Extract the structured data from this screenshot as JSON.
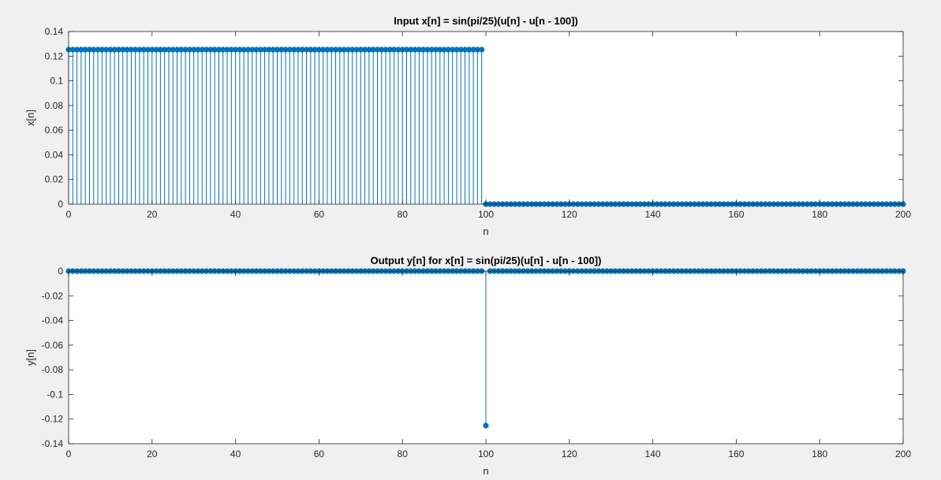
{
  "chart_data": [
    {
      "type": "stem",
      "title": "Input x[n] = sin(pi/25)(u[n] - u[n - 100])",
      "xlabel": "n",
      "ylabel": "x[n]",
      "xlim": [
        0,
        200
      ],
      "ylim": [
        0,
        0.14
      ],
      "xticks": [
        0,
        20,
        40,
        60,
        80,
        100,
        120,
        140,
        160,
        180,
        200
      ],
      "xtick_labels": [
        "0",
        "20",
        "40",
        "60",
        "80",
        "100",
        "120",
        "140",
        "160",
        "180",
        "200"
      ],
      "yticks": [
        0,
        0.02,
        0.04,
        0.06,
        0.08,
        0.1,
        0.12,
        0.14
      ],
      "ytick_labels": [
        "0",
        "0.02",
        "0.04",
        "0.06",
        "0.08",
        "0.1",
        "0.12",
        "0.14"
      ],
      "grid": false,
      "series": [
        {
          "color": "#0072bd",
          "segments": [
            {
              "x_start": 0,
              "x_end": 99,
              "step": 1,
              "y": 0.1253
            },
            {
              "x_start": 100,
              "x_end": 200,
              "step": 1,
              "y": 0
            }
          ]
        }
      ]
    },
    {
      "type": "stem",
      "title": "Output y[n] for x[n] = sin(pi/25)(u[n] - u[n - 100])",
      "xlabel": "n",
      "ylabel": "y[n]",
      "xlim": [
        0,
        200
      ],
      "ylim": [
        -0.14,
        0
      ],
      "xticks": [
        0,
        20,
        40,
        60,
        80,
        100,
        120,
        140,
        160,
        180,
        200
      ],
      "xtick_labels": [
        "0",
        "20",
        "40",
        "60",
        "80",
        "100",
        "120",
        "140",
        "160",
        "180",
        "200"
      ],
      "yticks": [
        0,
        -0.02,
        -0.04,
        -0.06,
        -0.08,
        -0.1,
        -0.12,
        -0.14
      ],
      "ytick_labels": [
        "0",
        "-0.02",
        "-0.04",
        "-0.06",
        "-0.08",
        "-0.1",
        "-0.12",
        "-0.14"
      ],
      "grid": false,
      "series": [
        {
          "color": "#0072bd",
          "segments": [
            {
              "x_start": 0,
              "x_end": 99,
              "step": 1,
              "y": 0
            },
            {
              "x_start": 100,
              "x_end": 100,
              "step": 1,
              "y": -0.1253
            },
            {
              "x_start": 101,
              "x_end": 200,
              "step": 1,
              "y": 0
            }
          ]
        }
      ]
    }
  ]
}
